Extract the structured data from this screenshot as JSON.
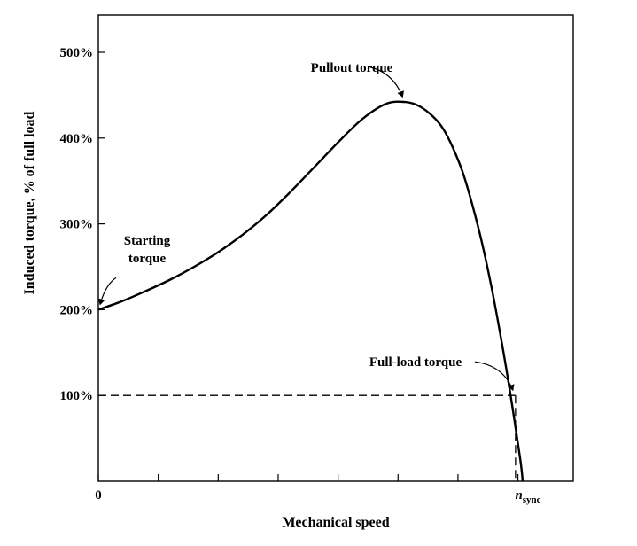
{
  "chart_data": {
    "type": "line",
    "title": "",
    "xlabel": "Mechanical speed",
    "ylabel": "Induced torque, % of full load",
    "x_axis": {
      "range": [
        0,
        100
      ],
      "ticks": [
        0,
        12.5,
        25,
        37.5,
        50,
        62.5,
        75,
        87.5
      ],
      "tick_labels": [
        {
          "x": 0,
          "text": "0"
        },
        {
          "x": 88.5,
          "text": "n",
          "sub": "sync"
        }
      ]
    },
    "y_axis": {
      "range": [
        0,
        500
      ],
      "ticks": [
        100,
        200,
        300,
        400,
        500
      ],
      "tick_labels": [
        "100%",
        "200%",
        "300%",
        "400%",
        "500%"
      ]
    },
    "grid": false,
    "series": [
      {
        "x": [
          0,
          5,
          10,
          15,
          20,
          25,
          30,
          35,
          40,
          45,
          50,
          55,
          60,
          64,
          67,
          70,
          72,
          74,
          76,
          78,
          80,
          82,
          84,
          86,
          88,
          88.5
        ],
        "values": [
          200,
          210,
          222,
          235,
          250,
          267,
          287,
          310,
          337,
          366,
          395,
          422,
          440,
          442,
          437,
          424,
          410,
          388,
          360,
          322,
          278,
          226,
          166,
          99,
          25,
          0
        ]
      }
    ],
    "reference_lines": [
      {
        "type": "horizontal",
        "y": 100,
        "x_to": 87.0,
        "style": "dashed"
      },
      {
        "type": "vertical",
        "x": 87.0,
        "y_to": 100,
        "style": "dashed"
      }
    ],
    "annotations": [
      {
        "text": "Pullout torque",
        "x": 64,
        "y": 442
      },
      {
        "text": "Starting\ntorque",
        "x": 0,
        "y": 200
      },
      {
        "text": "Full-load torque",
        "x": 87.0,
        "y": 100
      }
    ]
  }
}
